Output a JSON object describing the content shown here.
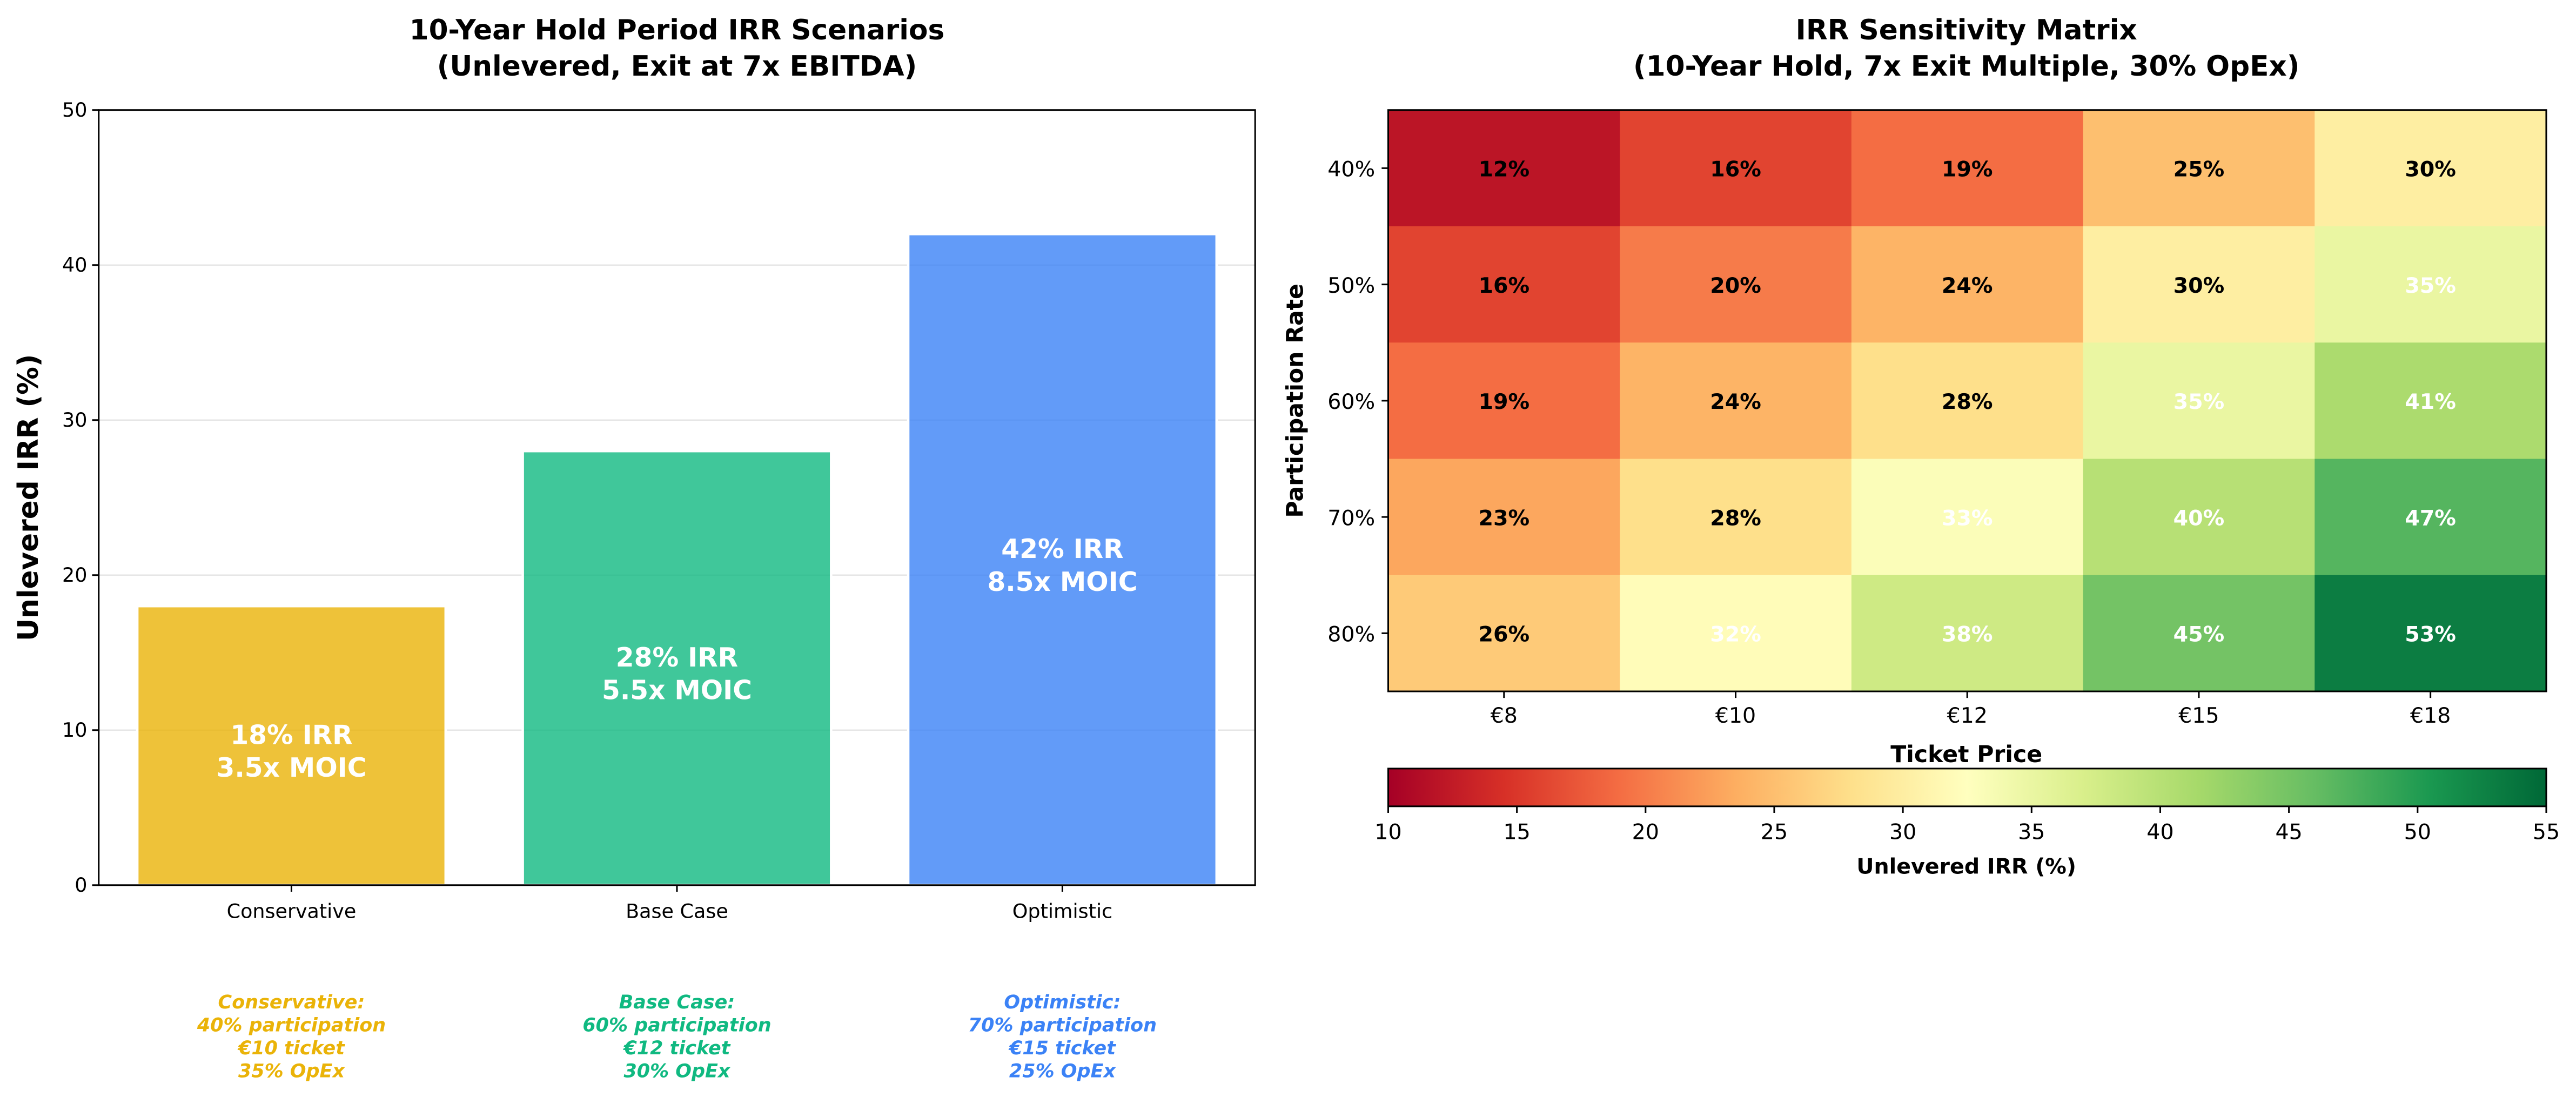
{
  "chart_data": [
    {
      "type": "bar",
      "title": [
        "10-Year Hold Period IRR Scenarios",
        "(Unlevered, Exit at 7x EBITDA)"
      ],
      "xlabel": "",
      "ylabel": "Unlevered IRR (%)",
      "ylim": [
        0,
        50
      ],
      "yticks": [
        "0",
        "10",
        "20",
        "30",
        "40",
        "50"
      ],
      "grid": "y",
      "categories": [
        "Conservative",
        "Base Case",
        "Optimistic"
      ],
      "values": [
        18,
        28,
        42
      ],
      "colors": [
        "#EAB308",
        "#10B981",
        "#3B82F6"
      ],
      "bar_labels": [
        [
          "18% IRR",
          "3.5x MOIC"
        ],
        [
          "28% IRR",
          "5.5x MOIC"
        ],
        [
          "42% IRR",
          "8.5x MOIC"
        ]
      ],
      "annotations": [
        [
          "Conservative:",
          "40% participation",
          "€10 ticket",
          "35% OpEx"
        ],
        [
          "Base Case:",
          "60% participation",
          "€12 ticket",
          "30% OpEx"
        ],
        [
          "Optimistic:",
          "70% participation",
          "€15 ticket",
          "25% OpEx"
        ]
      ]
    },
    {
      "type": "heatmap",
      "title": [
        "IRR Sensitivity Matrix",
        "(10-Year Hold, 7x Exit Multiple, 30% OpEx)"
      ],
      "xlabel": "Ticket Price",
      "ylabel": "Participation Rate",
      "x": [
        "€8",
        "€10",
        "€12",
        "€15",
        "€18"
      ],
      "y": [
        "40%",
        "50%",
        "60%",
        "70%",
        "80%"
      ],
      "values": [
        [
          12,
          16,
          19,
          25,
          30
        ],
        [
          16,
          20,
          24,
          30,
          35
        ],
        [
          19,
          24,
          28,
          35,
          41
        ],
        [
          23,
          28,
          33,
          40,
          47
        ],
        [
          26,
          32,
          38,
          45,
          53
        ]
      ],
      "cell_labels": [
        [
          "12%",
          "16%",
          "19%",
          "25%",
          "30%"
        ],
        [
          "16%",
          "20%",
          "24%",
          "30%",
          "35%"
        ],
        [
          "19%",
          "24%",
          "28%",
          "35%",
          "41%"
        ],
        [
          "23%",
          "28%",
          "33%",
          "40%",
          "47%"
        ],
        [
          "26%",
          "32%",
          "38%",
          "45%",
          "53%"
        ]
      ],
      "colormap": "RdYlGn",
      "vmin": 10,
      "vmax": 55,
      "colorbar": {
        "label": "Unlevered IRR (%)",
        "ticks": [
          "10",
          "15",
          "20",
          "25",
          "30",
          "35",
          "40",
          "45",
          "50",
          "55"
        ],
        "placement": "bottom"
      }
    }
  ]
}
